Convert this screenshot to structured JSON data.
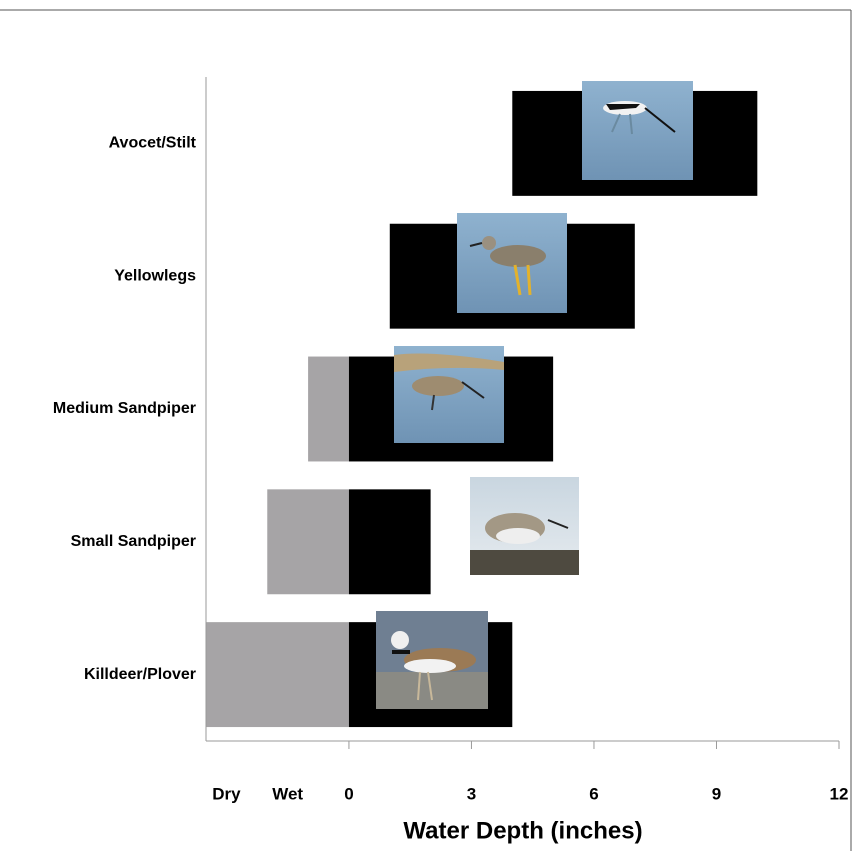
{
  "chart_data": {
    "type": "floating-bar",
    "xlabel": "Water Depth (inches)",
    "categories": [
      "Avocet/Stilt",
      "Yellowlegs",
      "Medium Sandpiper",
      "Small Sandpiper",
      "Killdeer/Plover"
    ],
    "series": [
      {
        "color": "#a6a4a6",
        "low": [
          null,
          null,
          -1,
          -2,
          -3.5
        ],
        "high": [
          null,
          null,
          0,
          0,
          0
        ]
      },
      {
        "color": "#000000",
        "low": [
          4,
          1,
          0,
          0,
          0
        ],
        "high": [
          10,
          7,
          5,
          2,
          4
        ]
      }
    ],
    "xlim": [
      -3.5,
      12
    ],
    "xticks": [
      {
        "value": -3,
        "label": "Dry"
      },
      {
        "value": -1.5,
        "label": "Wet"
      },
      0,
      3,
      6,
      9,
      12
    ]
  }
}
